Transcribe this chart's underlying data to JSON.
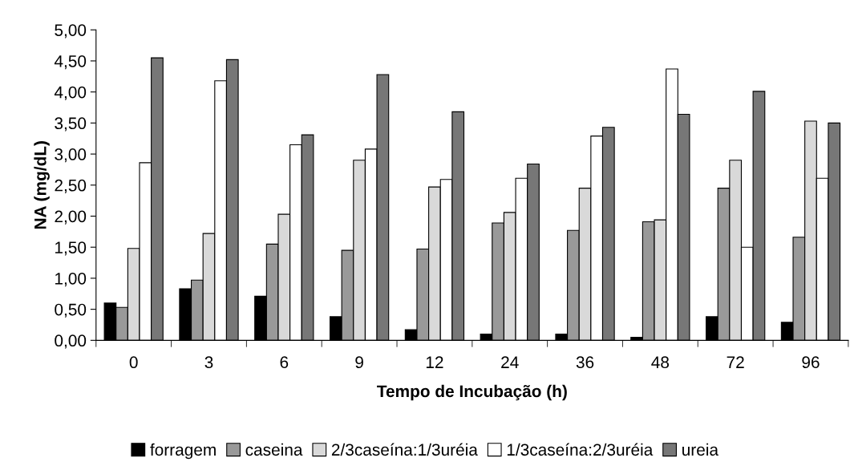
{
  "chart_data": {
    "type": "bar",
    "xlabel": "Tempo de Incubação (h)",
    "ylabel": "NA (mg/dL)",
    "categories": [
      "0",
      "3",
      "6",
      "9",
      "12",
      "24",
      "36",
      "48",
      "72",
      "96"
    ],
    "series": [
      {
        "name": "forragem",
        "color": "#000000",
        "values": [
          0.6,
          0.83,
          0.71,
          0.38,
          0.17,
          0.1,
          0.1,
          0.05,
          0.38,
          0.29
        ]
      },
      {
        "name": "caseina",
        "color": "#999999",
        "values": [
          0.53,
          0.97,
          1.55,
          1.45,
          1.47,
          1.89,
          1.77,
          1.91,
          2.45,
          1.66
        ]
      },
      {
        "name": "2/3caseína:1/3uréia",
        "color": "#d9d9d9",
        "values": [
          1.48,
          1.72,
          2.03,
          2.9,
          2.47,
          2.06,
          2.45,
          1.94,
          2.9,
          3.53
        ]
      },
      {
        "name": "1/3caseína:2/3uréia",
        "color": "#ffffff",
        "values": [
          2.86,
          4.18,
          3.15,
          3.08,
          2.59,
          2.61,
          3.29,
          4.37,
          1.5,
          2.61
        ]
      },
      {
        "name": "ureia",
        "color": "#777777",
        "values": [
          4.55,
          4.52,
          3.31,
          4.28,
          3.68,
          2.84,
          3.43,
          3.64,
          4.01,
          3.5
        ]
      }
    ],
    "ylim": [
      0,
      5
    ],
    "yticks": [
      {
        "value": 0,
        "label": "0,00"
      },
      {
        "value": 0.5,
        "label": "0,50"
      },
      {
        "value": 1,
        "label": "1,00"
      },
      {
        "value": 1.5,
        "label": "1,50"
      },
      {
        "value": 2,
        "label": "2,00"
      },
      {
        "value": 2.5,
        "label": "2,50"
      },
      {
        "value": 3,
        "label": "3,00"
      },
      {
        "value": 3.5,
        "label": "3,50"
      },
      {
        "value": 4,
        "label": "4,00"
      },
      {
        "value": 4.5,
        "label": "4,50"
      },
      {
        "value": 5,
        "label": "5,00"
      }
    ],
    "grid": false,
    "legend": "bottom"
  }
}
